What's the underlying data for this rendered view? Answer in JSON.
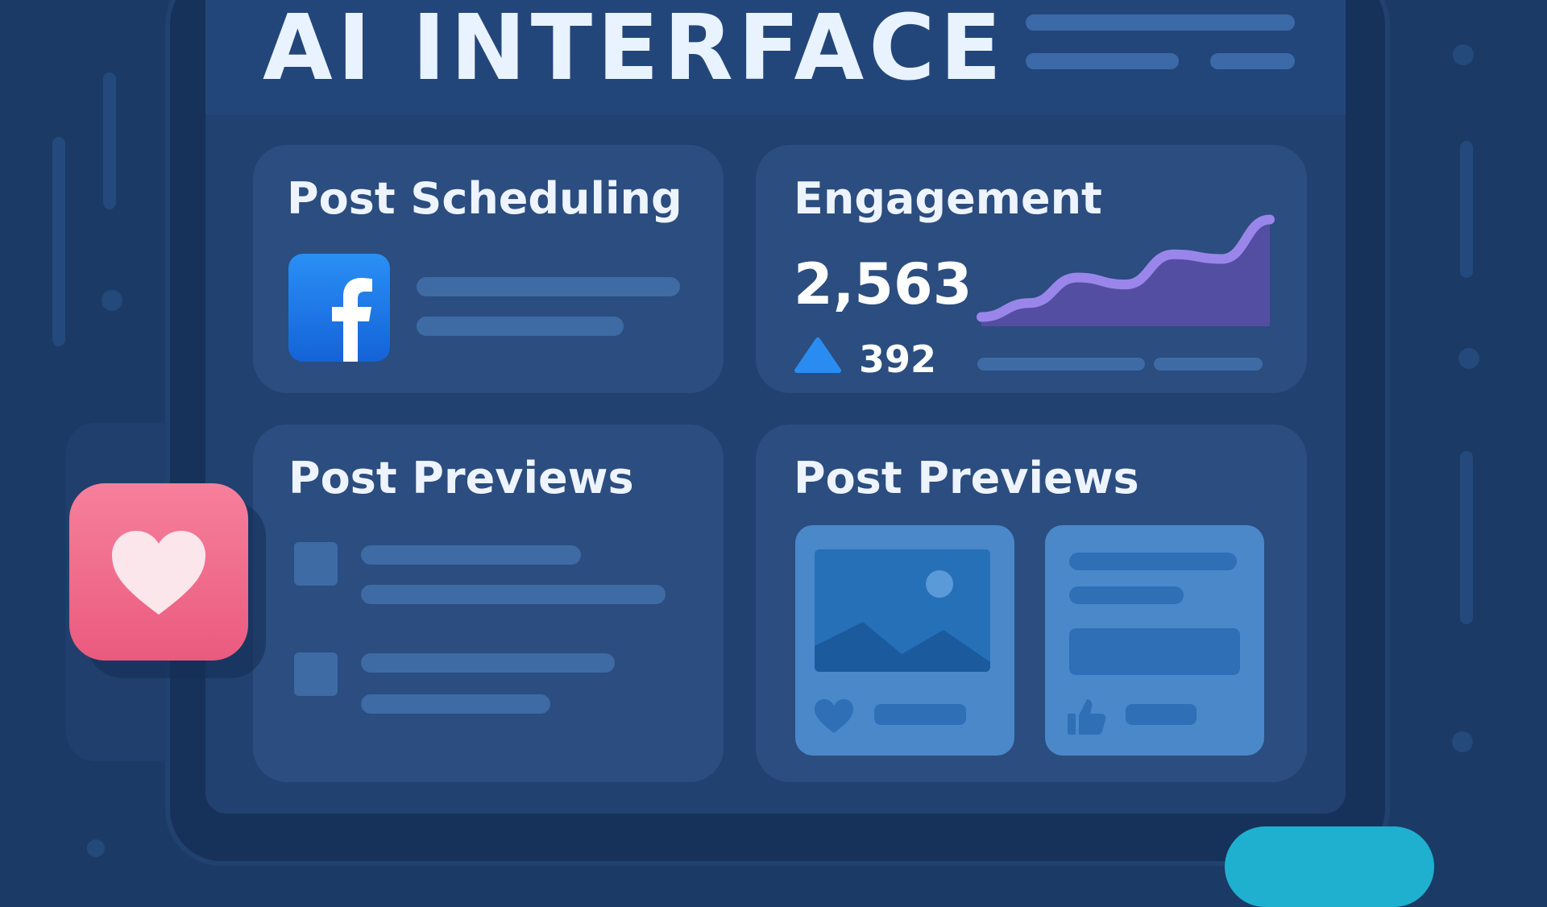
{
  "header": {
    "title": "AI INTERFACE"
  },
  "cards": {
    "scheduling": {
      "title": "Post Scheduling",
      "platform_icon": "facebook-icon"
    },
    "engagement": {
      "title": "Engagement",
      "total": "2,563",
      "delta": "392",
      "delta_icon": "triangle-up-icon",
      "trend": [
        0.08,
        0.2,
        0.42,
        0.36,
        0.62,
        0.58,
        0.92
      ]
    },
    "previews_list": {
      "title": "Post Previews"
    },
    "previews_media": {
      "title": "Post Previews",
      "items": [
        {
          "media_icon": "image-icon",
          "reaction_icon": "heart-icon"
        },
        {
          "reaction_icon": "thumbs-up-icon"
        }
      ]
    }
  },
  "floating": {
    "like_icon": "heart-icon"
  },
  "colors": {
    "background": "#1b3a66",
    "card": "#2b4d7f",
    "accent_facebook": "#1877f2",
    "accent_heart": "#ef6b8c",
    "chart_line": "#8e7be0",
    "teal": "#1fb0d0"
  }
}
